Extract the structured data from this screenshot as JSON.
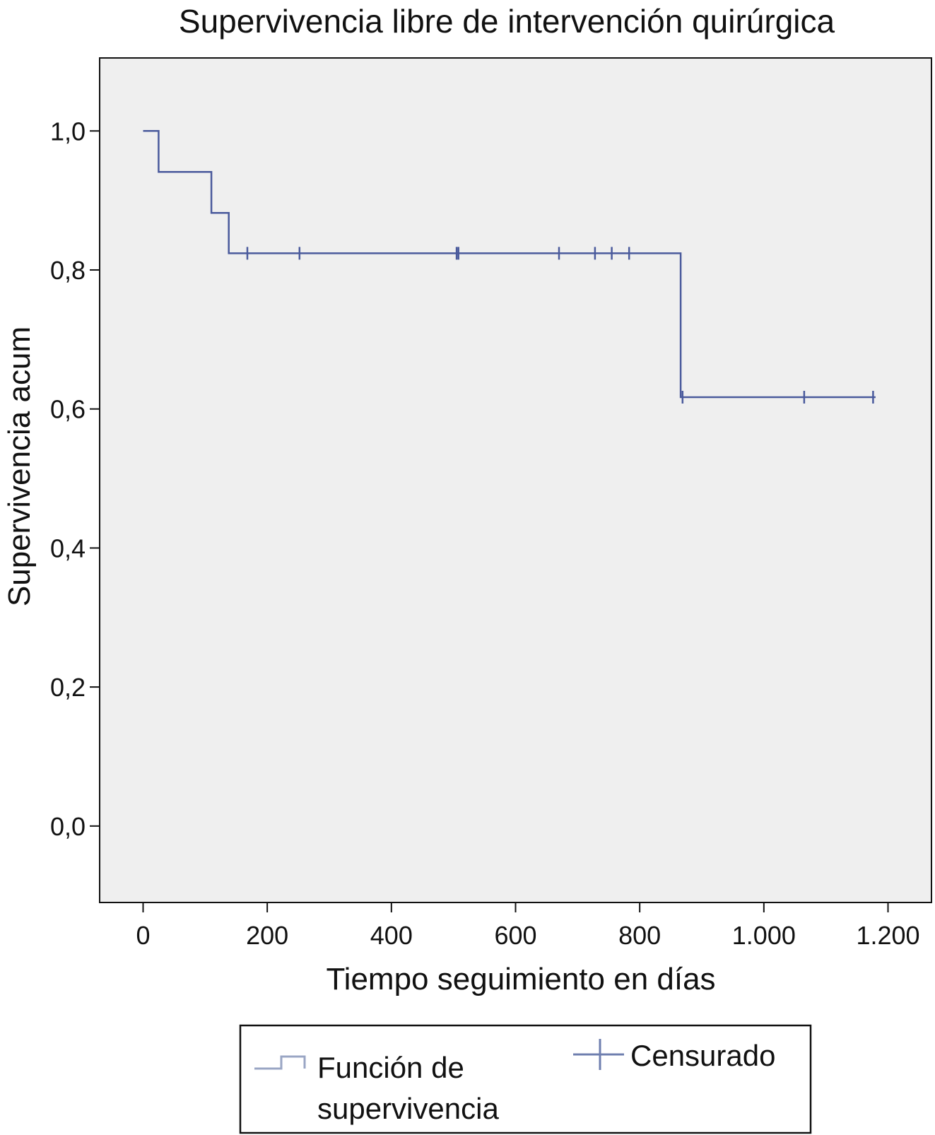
{
  "chart_data": {
    "type": "line",
    "title": "Supervivencia libre de intervención quirúrgica",
    "xlabel": "Tiempo seguimiento en días",
    "ylabel": "Supervivencia acum",
    "xlim": [
      -70,
      1270
    ],
    "ylim": [
      -0.11,
      1.105
    ],
    "x_ticks": [
      0,
      200,
      400,
      600,
      800,
      1000,
      1200
    ],
    "x_tick_labels": [
      "0",
      "200",
      "400",
      "600",
      "800",
      "1.000",
      "1.200"
    ],
    "y_ticks": [
      0,
      0.2,
      0.4,
      0.6,
      0.8,
      1.0
    ],
    "y_tick_labels": [
      "0,0",
      "0,2",
      "0,4",
      "0,6",
      "0,8",
      "1,0"
    ],
    "grid": false,
    "legend_position": "bottom",
    "colors": {
      "survival_line": "#4a5a9c",
      "censored_marks": "#4a5a9c",
      "plot_background": "#efefef",
      "legend_survival_swatch": "#9aa6c4",
      "legend_censored_swatch": "#6f7faf"
    },
    "series": [
      {
        "name": "Función de supervivencia",
        "kind": "step",
        "x": [
          0,
          25,
          25,
          110,
          110,
          138,
          138,
          866,
          866,
          1180
        ],
        "y": [
          1.0,
          1.0,
          0.941,
          0.941,
          0.882,
          0.882,
          0.824,
          0.824,
          0.617,
          0.617
        ]
      },
      {
        "name": "Censurado",
        "kind": "censored",
        "x": [
          168,
          252,
          505,
          508,
          670,
          728,
          755,
          783,
          869,
          1065,
          1176
        ],
        "y": [
          0.824,
          0.824,
          0.824,
          0.824,
          0.824,
          0.824,
          0.824,
          0.824,
          0.617,
          0.617,
          0.617
        ]
      }
    ],
    "legend": {
      "survival_label_line1": "Función de",
      "survival_label_line2": "supervivencia",
      "censored_label": "Censurado"
    }
  }
}
